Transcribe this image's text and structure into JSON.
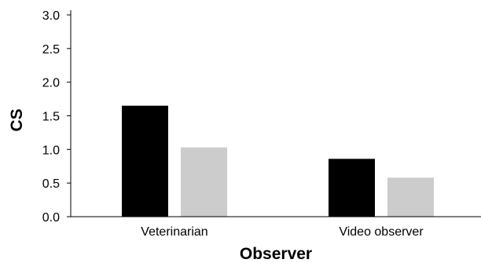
{
  "chart_data": {
    "type": "bar",
    "title": "",
    "xlabel": "Observer",
    "ylabel": "CS",
    "categories": [
      "Veterinarian",
      "Video observer"
    ],
    "series": [
      {
        "color": "#000000",
        "values": [
          1.65,
          0.86
        ]
      },
      {
        "color": "#cccccc",
        "values": [
          1.03,
          0.58
        ]
      }
    ],
    "ylim": [
      0,
      3.0
    ],
    "yticks": [
      "0.0",
      "0.5",
      "1.0",
      "1.5",
      "2.0",
      "2.5",
      "3.0"
    ],
    "ytick_values": [
      0,
      0.5,
      1.0,
      1.5,
      2.0,
      2.5,
      3.0
    ],
    "grid": false,
    "legend": "none"
  }
}
